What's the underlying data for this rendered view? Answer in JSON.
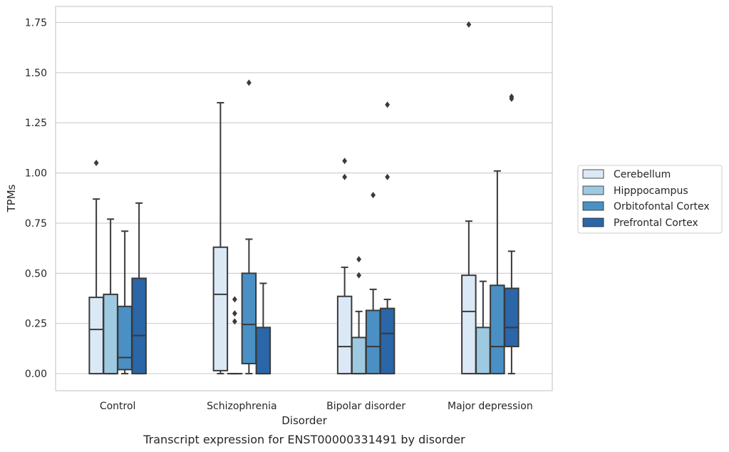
{
  "chart_data": {
    "type": "box",
    "caption": "Transcript expression for ENST00000331491 by disorder",
    "xlabel": "Disorder",
    "ylabel": "TPMs",
    "ylim": [
      -0.085,
      1.83
    ],
    "yticks": [
      0.0,
      0.25,
      0.5,
      0.75,
      1.0,
      1.25,
      1.5,
      1.75
    ],
    "ytick_labels": [
      "0.00",
      "0.25",
      "0.50",
      "0.75",
      "1.00",
      "1.25",
      "1.50",
      "1.75"
    ],
    "grid": true,
    "legend_position": "right",
    "categories": [
      "Control",
      "Schizophrenia",
      "Bipolar disorder",
      "Major depression"
    ],
    "series": [
      {
        "name": "Cerebellum",
        "color": "#dbe9f6",
        "boxes": [
          {
            "whislo": 0.0,
            "q1": 0.0,
            "med": 0.22,
            "q3": 0.38,
            "whishi": 0.87,
            "fliers": [
              1.05
            ]
          },
          {
            "whislo": 0.0,
            "q1": 0.015,
            "med": 0.395,
            "q3": 0.63,
            "whishi": 1.35,
            "fliers": []
          },
          {
            "whislo": 0.0,
            "q1": 0.0,
            "med": 0.135,
            "q3": 0.385,
            "whishi": 0.53,
            "fliers": [
              0.98,
              1.06
            ]
          },
          {
            "whislo": 0.0,
            "q1": 0.0,
            "med": 0.31,
            "q3": 0.49,
            "whishi": 0.76,
            "fliers": [
              1.74
            ]
          }
        ]
      },
      {
        "name": "Hipppocampus",
        "color": "#9ecae1",
        "boxes": [
          {
            "whislo": 0.0,
            "q1": 0.0,
            "med": 0.0,
            "q3": 0.395,
            "whishi": 0.77,
            "fliers": []
          },
          {
            "whislo": 0.0,
            "q1": 0.0,
            "med": 0.0,
            "q3": 0.0,
            "whishi": 0.0,
            "fliers": [
              0.26,
              0.3,
              0.37
            ]
          },
          {
            "whislo": 0.0,
            "q1": 0.0,
            "med": 0.0,
            "q3": 0.18,
            "whishi": 0.31,
            "fliers": [
              0.49,
              0.57
            ]
          },
          {
            "whislo": 0.0,
            "q1": 0.0,
            "med": 0.0,
            "q3": 0.23,
            "whishi": 0.46,
            "fliers": []
          }
        ]
      },
      {
        "name": "Orbitofontal Cortex",
        "color": "#4a90c4",
        "boxes": [
          {
            "whislo": 0.0,
            "q1": 0.02,
            "med": 0.08,
            "q3": 0.335,
            "whishi": 0.71,
            "fliers": []
          },
          {
            "whislo": 0.0,
            "q1": 0.05,
            "med": 0.245,
            "q3": 0.5,
            "whishi": 0.67,
            "fliers": [
              1.45
            ]
          },
          {
            "whislo": 0.0,
            "q1": 0.0,
            "med": 0.135,
            "q3": 0.315,
            "whishi": 0.42,
            "fliers": [
              0.89
            ]
          },
          {
            "whislo": 0.0,
            "q1": 0.0,
            "med": 0.135,
            "q3": 0.44,
            "whishi": 1.01,
            "fliers": []
          }
        ]
      },
      {
        "name": "Prefrontal Cortex",
        "color": "#2a66a8",
        "boxes": [
          {
            "whislo": 0.0,
            "q1": 0.0,
            "med": 0.19,
            "q3": 0.475,
            "whishi": 0.85,
            "fliers": []
          },
          {
            "whislo": 0.0,
            "q1": 0.0,
            "med": 0.0,
            "q3": 0.23,
            "whishi": 0.45,
            "fliers": []
          },
          {
            "whislo": 0.0,
            "q1": 0.0,
            "med": 0.2,
            "q3": 0.325,
            "whishi": 0.37,
            "fliers": [
              0.98,
              1.34
            ]
          },
          {
            "whislo": 0.0,
            "q1": 0.135,
            "med": 0.23,
            "q3": 0.425,
            "whishi": 0.61,
            "fliers": [
              1.37,
              1.38
            ]
          }
        ]
      }
    ]
  }
}
